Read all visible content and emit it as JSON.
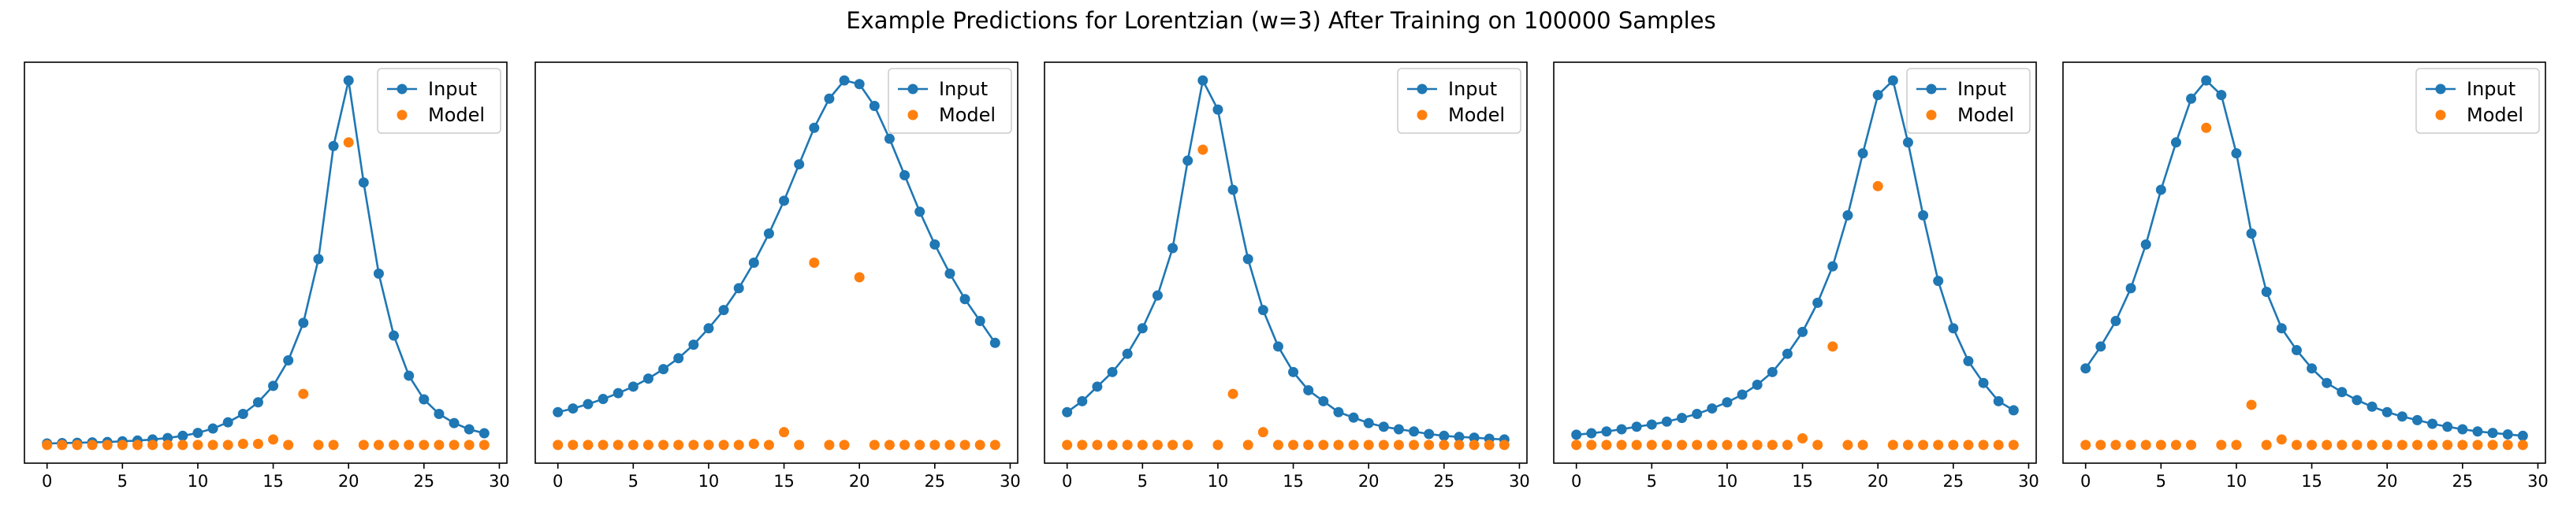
{
  "figure_title": "Example Predictions for Lorentzian (w=3) After Training on 100000 Samples",
  "colors": {
    "input": "#1f77b4",
    "model": "#ff7f0e",
    "axes": "#000000"
  },
  "legend": {
    "input_label": "Input",
    "model_label": "Model",
    "placement": "upper right"
  },
  "chart_data": [
    {
      "type": "line+scatter",
      "x": [
        0,
        1,
        2,
        3,
        4,
        5,
        6,
        7,
        8,
        9,
        10,
        11,
        12,
        13,
        14,
        15,
        16,
        17,
        18,
        19,
        20,
        21,
        22,
        23,
        24,
        25,
        26,
        27,
        28,
        29
      ],
      "xlim": [
        -1.5,
        30.5
      ],
      "ylim": [
        -0.05,
        1.05
      ],
      "xticks": [
        0,
        5,
        10,
        15,
        20,
        25,
        30
      ],
      "series": [
        {
          "name": "Input",
          "values": [
            0.004,
            0.005,
            0.006,
            0.007,
            0.008,
            0.01,
            0.012,
            0.015,
            0.019,
            0.025,
            0.033,
            0.045,
            0.062,
            0.085,
            0.117,
            0.162,
            0.232,
            0.335,
            0.51,
            0.82,
            1.0,
            0.72,
            0.47,
            0.3,
            0.19,
            0.125,
            0.085,
            0.06,
            0.043,
            0.032
          ]
        },
        {
          "name": "Model",
          "values": [
            0,
            0,
            0,
            0,
            0,
            0,
            0,
            0,
            0,
            0,
            0,
            0,
            0,
            0.003,
            0.003,
            0.015,
            0.0,
            0.14,
            0.0,
            0.0,
            0.83,
            0,
            0,
            0,
            0,
            0,
            0,
            0,
            0,
            0
          ]
        }
      ]
    },
    {
      "type": "line+scatter",
      "x": [
        0,
        1,
        2,
        3,
        4,
        5,
        6,
        7,
        8,
        9,
        10,
        11,
        12,
        13,
        14,
        15,
        16,
        17,
        18,
        19,
        20,
        21,
        22,
        23,
        24,
        25,
        26,
        27,
        28,
        29
      ],
      "xlim": [
        -1.5,
        30.5
      ],
      "ylim": [
        -0.05,
        1.05
      ],
      "xticks": [
        0,
        5,
        10,
        15,
        20,
        25,
        30
      ],
      "series": [
        {
          "name": "Input",
          "values": [
            0.09,
            0.1,
            0.112,
            0.126,
            0.142,
            0.16,
            0.182,
            0.208,
            0.238,
            0.275,
            0.32,
            0.37,
            0.43,
            0.5,
            0.58,
            0.67,
            0.77,
            0.87,
            0.95,
            1.0,
            0.99,
            0.93,
            0.84,
            0.74,
            0.64,
            0.55,
            0.47,
            0.4,
            0.34,
            0.28
          ]
        },
        {
          "name": "Model",
          "values": [
            0,
            0,
            0,
            0,
            0,
            0,
            0,
            0,
            0,
            0,
            0,
            0,
            0,
            0.003,
            0.0,
            0.035,
            0.0,
            0.5,
            0.0,
            0.0,
            0.46,
            0,
            0,
            0,
            0,
            0,
            0,
            0,
            0,
            0
          ]
        }
      ]
    },
    {
      "type": "line+scatter",
      "x": [
        0,
        1,
        2,
        3,
        4,
        5,
        6,
        7,
        8,
        9,
        10,
        11,
        12,
        13,
        14,
        15,
        16,
        17,
        18,
        19,
        20,
        21,
        22,
        23,
        24,
        25,
        26,
        27,
        28,
        29
      ],
      "xlim": [
        -1.5,
        30.5
      ],
      "ylim": [
        -0.05,
        1.05
      ],
      "xticks": [
        0,
        5,
        10,
        15,
        20,
        25,
        30
      ],
      "series": [
        {
          "name": "Input",
          "values": [
            0.09,
            0.12,
            0.16,
            0.2,
            0.25,
            0.32,
            0.41,
            0.54,
            0.78,
            1.0,
            0.92,
            0.7,
            0.51,
            0.37,
            0.27,
            0.2,
            0.15,
            0.12,
            0.09,
            0.075,
            0.06,
            0.05,
            0.043,
            0.037,
            0.03,
            0.025,
            0.022,
            0.02,
            0.017,
            0.015
          ]
        },
        {
          "name": "Model",
          "values": [
            0,
            0,
            0,
            0,
            0,
            0,
            0,
            0,
            0,
            0.81,
            0.0,
            0.14,
            0.0,
            0.035,
            0.0,
            0.0,
            0,
            0,
            0,
            0,
            0,
            0,
            0,
            0,
            0,
            0,
            0,
            0,
            0,
            0
          ]
        }
      ]
    },
    {
      "type": "line+scatter",
      "x": [
        0,
        1,
        2,
        3,
        4,
        5,
        6,
        7,
        8,
        9,
        10,
        11,
        12,
        13,
        14,
        15,
        16,
        17,
        18,
        19,
        20,
        21,
        22,
        23,
        24,
        25,
        26,
        27,
        28,
        29
      ],
      "xlim": [
        -1.5,
        30.5
      ],
      "ylim": [
        -0.05,
        1.05
      ],
      "xticks": [
        0,
        5,
        10,
        15,
        20,
        25,
        30
      ],
      "series": [
        {
          "name": "Input",
          "values": [
            0.028,
            0.032,
            0.037,
            0.043,
            0.05,
            0.056,
            0.064,
            0.074,
            0.085,
            0.1,
            0.117,
            0.138,
            0.165,
            0.2,
            0.25,
            0.31,
            0.39,
            0.49,
            0.63,
            0.8,
            0.96,
            1.0,
            0.83,
            0.63,
            0.45,
            0.32,
            0.23,
            0.17,
            0.12,
            0.095
          ]
        },
        {
          "name": "Model",
          "values": [
            0,
            0,
            0,
            0,
            0,
            0,
            0,
            0,
            0,
            0,
            0,
            0,
            0,
            0,
            0,
            0.018,
            0.0,
            0.27,
            0.0,
            0.0,
            0.71,
            0,
            0,
            0,
            0,
            0,
            0,
            0,
            0,
            0
          ]
        }
      ]
    },
    {
      "type": "line+scatter",
      "x": [
        0,
        1,
        2,
        3,
        4,
        5,
        6,
        7,
        8,
        9,
        10,
        11,
        12,
        13,
        14,
        15,
        16,
        17,
        18,
        19,
        20,
        21,
        22,
        23,
        24,
        25,
        26,
        27,
        28,
        29
      ],
      "xlim": [
        -1.5,
        30.5
      ],
      "ylim": [
        -0.05,
        1.05
      ],
      "xticks": [
        0,
        5,
        10,
        15,
        20,
        25,
        30
      ],
      "series": [
        {
          "name": "Input",
          "values": [
            0.21,
            0.27,
            0.34,
            0.43,
            0.55,
            0.7,
            0.83,
            0.95,
            1.0,
            0.96,
            0.8,
            0.58,
            0.42,
            0.32,
            0.26,
            0.21,
            0.17,
            0.145,
            0.123,
            0.105,
            0.09,
            0.078,
            0.068,
            0.058,
            0.05,
            0.043,
            0.037,
            0.033,
            0.029,
            0.025
          ]
        },
        {
          "name": "Model",
          "values": [
            0,
            0,
            0,
            0,
            0,
            0,
            0,
            0,
            0.87,
            0.0,
            0.0,
            0.11,
            0.0,
            0.015,
            0.0,
            0.0,
            0,
            0,
            0,
            0,
            0,
            0,
            0,
            0,
            0,
            0,
            0,
            0,
            0,
            0
          ]
        }
      ]
    }
  ]
}
